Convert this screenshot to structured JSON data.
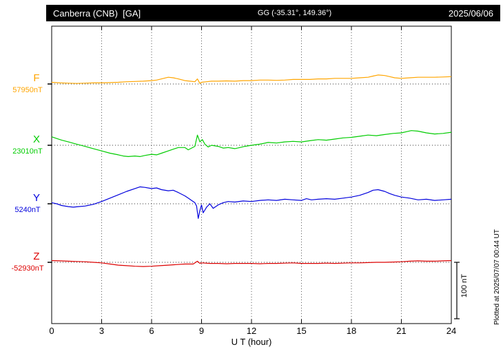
{
  "header": {
    "station": "Canberra (CNB)  [GA]",
    "coords": "GG (-35.31°, 149.36°)",
    "date": "2025/06/06"
  },
  "footer": {
    "plotted_at": "Plotted at 2025/07/07 00:44 UT"
  },
  "chart_data": {
    "type": "line",
    "xlabel": "U T (hour)",
    "x_range": [
      0,
      24
    ],
    "x_ticks": [
      0,
      3,
      6,
      9,
      12,
      15,
      18,
      21,
      24
    ],
    "grid": "dotted vertical lines at 3-hour ticks; dotted horizontal baseline per component",
    "scale_bar": {
      "label": "100 nT",
      "nT": 100
    },
    "series": [
      {
        "name": "F",
        "baseline_label": "57950nT",
        "baseline_nT": 57950,
        "color": "#FFA500",
        "units": "nT deviation from baseline",
        "points": [
          [
            0,
            3
          ],
          [
            0.5,
            2
          ],
          [
            1,
            1.5
          ],
          [
            1.5,
            1
          ],
          [
            2,
            1.5
          ],
          [
            2.5,
            2
          ],
          [
            3,
            2
          ],
          [
            3.5,
            2.5
          ],
          [
            4,
            3
          ],
          [
            4.5,
            4
          ],
          [
            5,
            4.5
          ],
          [
            5.5,
            5
          ],
          [
            6,
            6
          ],
          [
            6.3,
            7
          ],
          [
            6.6,
            9
          ],
          [
            7,
            12
          ],
          [
            7.3,
            11
          ],
          [
            7.6,
            9
          ],
          [
            8,
            6
          ],
          [
            8.3,
            5
          ],
          [
            8.6,
            4
          ],
          [
            8.75,
            9
          ],
          [
            8.9,
            1
          ],
          [
            9,
            3
          ],
          [
            9.3,
            4
          ],
          [
            9.6,
            5
          ],
          [
            10,
            5
          ],
          [
            10.5,
            5.5
          ],
          [
            11,
            5
          ],
          [
            11.5,
            6
          ],
          [
            12,
            6
          ],
          [
            12.5,
            7
          ],
          [
            13,
            7
          ],
          [
            13.5,
            6.5
          ],
          [
            14,
            7
          ],
          [
            14.5,
            8
          ],
          [
            15,
            8
          ],
          [
            15.5,
            8
          ],
          [
            16,
            9
          ],
          [
            16.5,
            9
          ],
          [
            17,
            10
          ],
          [
            17.5,
            10
          ],
          [
            18,
            10
          ],
          [
            18.5,
            11
          ],
          [
            19,
            12
          ],
          [
            19.3,
            14
          ],
          [
            19.6,
            16
          ],
          [
            20,
            15
          ],
          [
            20.3,
            13
          ],
          [
            20.6,
            11
          ],
          [
            21,
            10
          ],
          [
            21.5,
            11
          ],
          [
            22,
            12
          ],
          [
            22.5,
            12
          ],
          [
            23,
            12
          ],
          [
            23.5,
            12.5
          ],
          [
            24,
            13
          ]
        ]
      },
      {
        "name": "X",
        "baseline_label": "23010nT",
        "baseline_nT": 23010,
        "color": "#00CC00",
        "units": "nT deviation from baseline",
        "points": [
          [
            0,
            15
          ],
          [
            0.3,
            12
          ],
          [
            0.6,
            9
          ],
          [
            1,
            6
          ],
          [
            1.5,
            2
          ],
          [
            2,
            -2
          ],
          [
            2.5,
            -6
          ],
          [
            3,
            -10
          ],
          [
            3.5,
            -14
          ],
          [
            4,
            -17
          ],
          [
            4.3,
            -19
          ],
          [
            4.6,
            -20
          ],
          [
            5,
            -19
          ],
          [
            5.3,
            -20
          ],
          [
            5.6,
            -18
          ],
          [
            6,
            -16
          ],
          [
            6.3,
            -17
          ],
          [
            6.6,
            -14
          ],
          [
            7,
            -10
          ],
          [
            7.3,
            -7
          ],
          [
            7.6,
            -4
          ],
          [
            8,
            -4
          ],
          [
            8.2,
            -8
          ],
          [
            8.4,
            -5
          ],
          [
            8.6,
            -2
          ],
          [
            8.75,
            18
          ],
          [
            8.9,
            6
          ],
          [
            9.05,
            10
          ],
          [
            9.2,
            2
          ],
          [
            9.4,
            -3
          ],
          [
            9.6,
            0
          ],
          [
            10,
            -2
          ],
          [
            10.3,
            -5
          ],
          [
            10.6,
            -4
          ],
          [
            11,
            -6
          ],
          [
            11.3,
            -4
          ],
          [
            11.6,
            -2
          ],
          [
            12,
            0
          ],
          [
            12.5,
            2
          ],
          [
            13,
            5
          ],
          [
            13.5,
            4
          ],
          [
            14,
            6
          ],
          [
            14.5,
            7
          ],
          [
            15,
            6
          ],
          [
            15.5,
            8
          ],
          [
            16,
            10
          ],
          [
            16.5,
            9
          ],
          [
            17,
            11
          ],
          [
            17.5,
            13
          ],
          [
            18,
            14
          ],
          [
            18.5,
            16
          ],
          [
            19,
            18
          ],
          [
            19.5,
            17
          ],
          [
            20,
            19
          ],
          [
            20.5,
            21
          ],
          [
            21,
            22
          ],
          [
            21.3,
            24
          ],
          [
            21.6,
            26
          ],
          [
            22,
            25
          ],
          [
            22.5,
            22
          ],
          [
            23,
            20
          ],
          [
            23.5,
            21
          ],
          [
            24,
            23
          ]
        ]
      },
      {
        "name": "Y",
        "baseline_label": "5240nT",
        "baseline_nT": 5240,
        "color": "#0000DD",
        "units": "nT deviation from baseline",
        "points": [
          [
            0,
            2
          ],
          [
            0.3,
            0
          ],
          [
            0.6,
            -3
          ],
          [
            1,
            -5
          ],
          [
            1.3,
            -6
          ],
          [
            1.6,
            -5
          ],
          [
            2,
            -4
          ],
          [
            2.5,
            -1
          ],
          [
            3,
            4
          ],
          [
            3.5,
            10
          ],
          [
            4,
            16
          ],
          [
            4.5,
            22
          ],
          [
            5,
            27
          ],
          [
            5.3,
            30
          ],
          [
            5.6,
            29
          ],
          [
            6,
            27
          ],
          [
            6.3,
            28
          ],
          [
            6.6,
            25
          ],
          [
            7,
            23
          ],
          [
            7.3,
            24
          ],
          [
            7.6,
            20
          ],
          [
            8,
            14
          ],
          [
            8.2,
            10
          ],
          [
            8.4,
            6
          ],
          [
            8.6,
            2
          ],
          [
            8.7,
            -4
          ],
          [
            8.8,
            -26
          ],
          [
            8.9,
            -12
          ],
          [
            9,
            -2
          ],
          [
            9.1,
            -16
          ],
          [
            9.3,
            -6
          ],
          [
            9.5,
            0
          ],
          [
            9.7,
            -8
          ],
          [
            10,
            -2
          ],
          [
            10.3,
            2
          ],
          [
            10.6,
            4
          ],
          [
            11,
            3
          ],
          [
            11.5,
            5
          ],
          [
            12,
            4
          ],
          [
            12.5,
            6
          ],
          [
            13,
            7
          ],
          [
            13.5,
            6
          ],
          [
            14,
            8
          ],
          [
            14.5,
            7
          ],
          [
            15,
            6
          ],
          [
            15.3,
            9
          ],
          [
            15.6,
            7
          ],
          [
            16,
            8
          ],
          [
            16.5,
            9
          ],
          [
            17,
            8
          ],
          [
            17.5,
            10
          ],
          [
            18,
            12
          ],
          [
            18.5,
            15
          ],
          [
            19,
            20
          ],
          [
            19.3,
            24
          ],
          [
            19.6,
            25
          ],
          [
            20,
            22
          ],
          [
            20.3,
            18
          ],
          [
            20.6,
            15
          ],
          [
            21,
            12
          ],
          [
            21.5,
            10
          ],
          [
            22,
            7
          ],
          [
            22.5,
            8
          ],
          [
            23,
            6
          ],
          [
            23.5,
            7
          ],
          [
            24,
            8
          ]
        ]
      },
      {
        "name": "Z",
        "baseline_label": "-52930nT",
        "baseline_nT": -52930,
        "color": "#DD0000",
        "units": "nT deviation from baseline",
        "points": [
          [
            0,
            3
          ],
          [
            0.5,
            2.5
          ],
          [
            1,
            2
          ],
          [
            1.5,
            1.5
          ],
          [
            2,
            1
          ],
          [
            2.5,
            0
          ],
          [
            3,
            -1
          ],
          [
            3.5,
            -3
          ],
          [
            4,
            -5
          ],
          [
            4.5,
            -6
          ],
          [
            5,
            -7
          ],
          [
            5.5,
            -7.5
          ],
          [
            6,
            -7
          ],
          [
            6.5,
            -6
          ],
          [
            7,
            -5
          ],
          [
            7.5,
            -4
          ],
          [
            8,
            -3
          ],
          [
            8.5,
            -3
          ],
          [
            8.75,
            2
          ],
          [
            8.9,
            -2
          ],
          [
            9,
            -1
          ],
          [
            9.5,
            -2
          ],
          [
            10,
            -2
          ],
          [
            10.5,
            -2.5
          ],
          [
            11,
            -2
          ],
          [
            11.5,
            -2
          ],
          [
            12,
            -2
          ],
          [
            12.5,
            -2.5
          ],
          [
            13,
            -2
          ],
          [
            13.5,
            -2
          ],
          [
            14,
            -1.5
          ],
          [
            14.5,
            -1
          ],
          [
            15,
            -2
          ],
          [
            15.5,
            -2
          ],
          [
            16,
            -2
          ],
          [
            16.5,
            -1.5
          ],
          [
            17,
            -2
          ],
          [
            17.5,
            -1.5
          ],
          [
            18,
            -1
          ],
          [
            18.5,
            -1
          ],
          [
            19,
            -0.5
          ],
          [
            19.5,
            0
          ],
          [
            20,
            0
          ],
          [
            20.5,
            0.5
          ],
          [
            21,
            1
          ],
          [
            21.5,
            2
          ],
          [
            22,
            2.5
          ],
          [
            22.5,
            2
          ],
          [
            23,
            2
          ],
          [
            23.5,
            2.5
          ],
          [
            24,
            3
          ]
        ]
      }
    ]
  }
}
